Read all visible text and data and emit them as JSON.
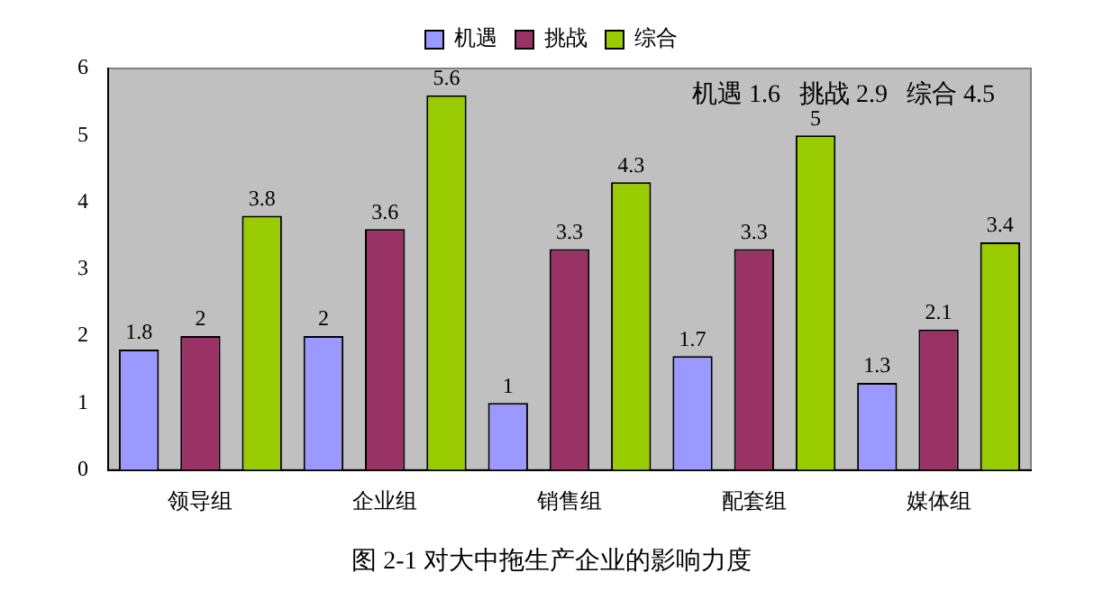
{
  "chart_data": {
    "type": "bar",
    "title": "图 2-1 对大中拖生产企业的影响力度",
    "categories": [
      "领导组",
      "企业组",
      "销售组",
      "配套组",
      "媒体组"
    ],
    "series": [
      {
        "name": "机遇",
        "color": "#9999ff",
        "values": [
          1.8,
          2,
          1,
          1.7,
          1.3
        ]
      },
      {
        "name": "挑战",
        "color": "#993366",
        "values": [
          2,
          3.6,
          3.3,
          3.3,
          2.1
        ]
      },
      {
        "name": "综合",
        "color": "#99cc00",
        "values": [
          3.8,
          5.6,
          4.3,
          5,
          3.4
        ]
      }
    ],
    "ylim": [
      0,
      6
    ],
    "yticks": [
      0,
      1,
      2,
      3,
      4,
      5,
      6
    ],
    "grid": false,
    "legend": "top",
    "data_labels": true,
    "annotations": [
      "机遇 1.6   挑战 2.9   综合 4.5"
    ]
  }
}
